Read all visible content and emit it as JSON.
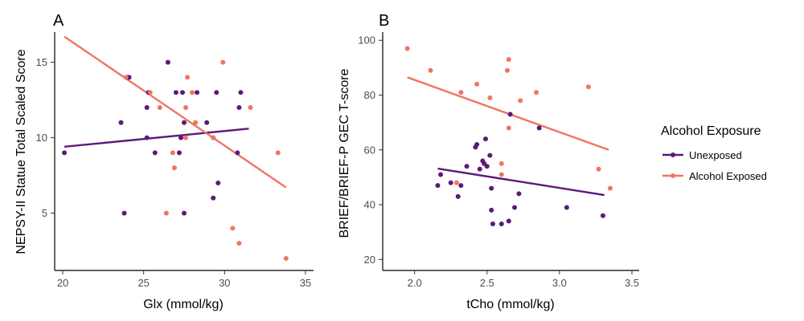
{
  "colors": {
    "unexposed": "#5b1a7a",
    "exposed": "#ef7565"
  },
  "legend": {
    "title": "Alcohol Exposure",
    "items": [
      {
        "label": "Unexposed",
        "color": "#5b1a7a"
      },
      {
        "label": "Alcohol Exposed",
        "color": "#ef7565"
      }
    ]
  },
  "chart_data": [
    {
      "type": "scatter",
      "tag": "A",
      "xlabel": "Glx (mmol/kg)",
      "ylabel": "NEPSY-II Statue Total Scaled Score",
      "xlim": [
        19.5,
        35.5
      ],
      "ylim": [
        1.2,
        17.0
      ],
      "xticks": [
        20,
        25,
        30,
        35
      ],
      "yticks": [
        5,
        10,
        15
      ],
      "series": [
        {
          "name": "Unexposed",
          "points": [
            [
              20.1,
              9
            ],
            [
              23.6,
              11
            ],
            [
              23.8,
              5
            ],
            [
              24.1,
              14
            ],
            [
              24.0,
              14
            ],
            [
              25.2,
              12
            ],
            [
              25.2,
              10
            ],
            [
              25.3,
              13
            ],
            [
              25.7,
              9
            ],
            [
              26.5,
              15
            ],
            [
              27.0,
              13
            ],
            [
              27.2,
              9
            ],
            [
              27.3,
              10
            ],
            [
              27.4,
              13
            ],
            [
              27.5,
              11
            ],
            [
              27.5,
              5
            ],
            [
              28.3,
              13
            ],
            [
              28.9,
              11
            ],
            [
              29.3,
              6
            ],
            [
              29.3,
              10
            ],
            [
              29.5,
              13
            ],
            [
              29.6,
              7
            ],
            [
              30.8,
              9
            ],
            [
              30.9,
              12
            ],
            [
              31.0,
              13
            ]
          ],
          "fit": [
            [
              20.1,
              9.4
            ],
            [
              31.5,
              10.6
            ]
          ]
        },
        {
          "name": "Alcohol Exposed",
          "points": [
            [
              23.9,
              14
            ],
            [
              25.4,
              13
            ],
            [
              26.0,
              12
            ],
            [
              26.4,
              5
            ],
            [
              26.8,
              9
            ],
            [
              26.9,
              8
            ],
            [
              27.6,
              10
            ],
            [
              27.6,
              12
            ],
            [
              27.7,
              14
            ],
            [
              28.0,
              13
            ],
            [
              28.2,
              11
            ],
            [
              29.3,
              10
            ],
            [
              29.9,
              15
            ],
            [
              30.5,
              4
            ],
            [
              30.9,
              3
            ],
            [
              31.6,
              12
            ],
            [
              33.3,
              9
            ],
            [
              33.8,
              2
            ]
          ],
          "fit": [
            [
              20.1,
              16.7
            ],
            [
              33.8,
              6.7
            ]
          ]
        }
      ]
    },
    {
      "type": "scatter",
      "tag": "B",
      "xlabel": "tCho (mmol/kg)",
      "ylabel": "BRIEF/BRIEF-P GEC T-score",
      "xlim": [
        1.78,
        3.55
      ],
      "ylim": [
        16,
        103
      ],
      "xticks": [
        2.0,
        2.5,
        3.0,
        3.5
      ],
      "xtick_labels": [
        "2.0",
        "2.5",
        "3.0",
        "3.5"
      ],
      "yticks": [
        20,
        40,
        60,
        80,
        100
      ],
      "series": [
        {
          "name": "Unexposed",
          "points": [
            [
              2.16,
              47
            ],
            [
              2.18,
              51
            ],
            [
              2.25,
              48
            ],
            [
              2.3,
              43
            ],
            [
              2.32,
              47
            ],
            [
              2.36,
              54
            ],
            [
              2.42,
              61
            ],
            [
              2.43,
              62
            ],
            [
              2.45,
              53
            ],
            [
              2.47,
              56
            ],
            [
              2.48,
              55
            ],
            [
              2.49,
              64
            ],
            [
              2.5,
              54
            ],
            [
              2.52,
              58
            ],
            [
              2.53,
              46
            ],
            [
              2.53,
              38
            ],
            [
              2.54,
              33
            ],
            [
              2.6,
              33
            ],
            [
              2.65,
              34
            ],
            [
              2.66,
              73
            ],
            [
              2.69,
              39
            ],
            [
              2.72,
              44
            ],
            [
              2.86,
              68
            ],
            [
              3.05,
              39
            ],
            [
              3.3,
              36
            ]
          ],
          "fit": [
            [
              2.16,
              53.2
            ],
            [
              3.31,
              43.5
            ]
          ]
        },
        {
          "name": "Alcohol Exposed",
          "points": [
            [
              1.95,
              97
            ],
            [
              2.11,
              89
            ],
            [
              2.29,
              48
            ],
            [
              2.32,
              81
            ],
            [
              2.43,
              84
            ],
            [
              2.52,
              79
            ],
            [
              2.6,
              55
            ],
            [
              2.6,
              51
            ],
            [
              2.64,
              89
            ],
            [
              2.65,
              93
            ],
            [
              2.65,
              68
            ],
            [
              2.73,
              78
            ],
            [
              2.84,
              81
            ],
            [
              3.2,
              83
            ],
            [
              3.27,
              53
            ],
            [
              3.35,
              46
            ]
          ],
          "fit": [
            [
              1.95,
              86.5
            ],
            [
              3.34,
              60.0
            ]
          ]
        }
      ]
    }
  ]
}
